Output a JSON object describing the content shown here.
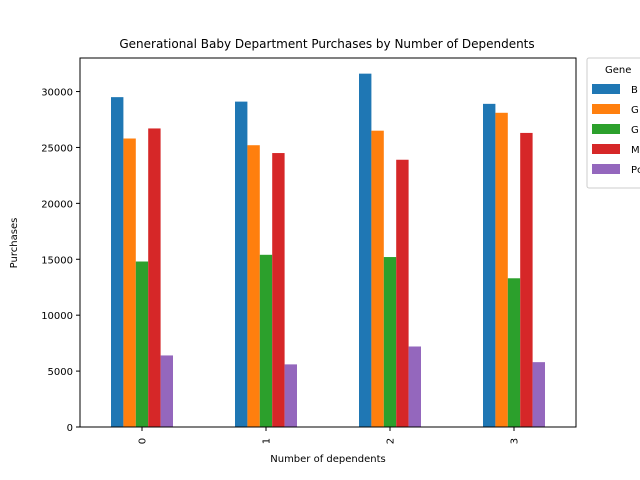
{
  "chart_data": {
    "type": "bar",
    "title": "Generational Baby Department Purchases by Number of Dependents",
    "xlabel": "Number of dependents",
    "ylabel": "Purchases",
    "categories": [
      "0",
      "1",
      "2",
      "3"
    ],
    "ylim": [
      0,
      33000
    ],
    "yticks": [
      0,
      5000,
      10000,
      15000,
      20000,
      25000,
      30000
    ],
    "grid": false,
    "legend": {
      "placement": "outside-top-right",
      "title": "Gene",
      "entries": [
        "B",
        "G",
        "G",
        "M",
        "Pc"
      ]
    },
    "series": [
      {
        "color": "#1f77b4",
        "values": [
          29500,
          29100,
          31600,
          28900
        ]
      },
      {
        "color": "#ff7f0e",
        "values": [
          25800,
          25200,
          26500,
          28100
        ]
      },
      {
        "color": "#2ca02c",
        "values": [
          14800,
          15400,
          15200,
          13300
        ]
      },
      {
        "color": "#d62728",
        "values": [
          26700,
          24500,
          23900,
          26300
        ]
      },
      {
        "color": "#9467bd",
        "values": [
          6400,
          5600,
          7200,
          5800
        ]
      }
    ]
  }
}
